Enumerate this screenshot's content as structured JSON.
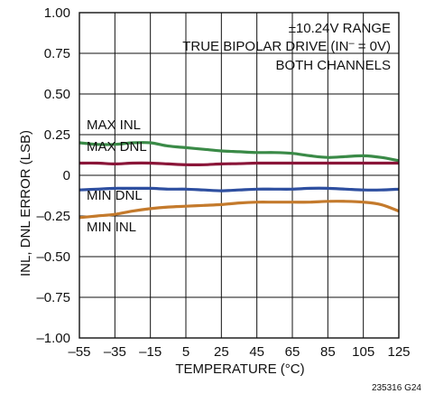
{
  "chart_data": {
    "type": "line",
    "title": "",
    "xlabel": "TEMPERATURE (°C)",
    "ylabel": "INL, DNL ERROR (LSB)",
    "xlim": [
      -55,
      125
    ],
    "ylim": [
      -1.0,
      1.0
    ],
    "x_ticks": [
      -55,
      -35,
      -15,
      5,
      25,
      45,
      65,
      85,
      105,
      125
    ],
    "x_tick_labels": [
      "–55",
      "–35",
      "–15",
      "5",
      "25",
      "45",
      "65",
      "85",
      "105",
      "125"
    ],
    "y_ticks": [
      1.0,
      0.75,
      0.5,
      0.25,
      0,
      -0.25,
      -0.5,
      -0.75,
      -1.0
    ],
    "y_tick_labels": [
      "1.00",
      "0.75",
      "0.50",
      "0.25",
      "0",
      "–0.25",
      "–0.50",
      "–0.75",
      "–1.00"
    ],
    "grid": true,
    "notes": [
      "±10.24V RANGE",
      "TRUE BIPOLAR DRIVE (IN",
      "–",
      " = 0V)",
      "BOTH CHANNELS"
    ],
    "figure_id": "235316 G24",
    "series": [
      {
        "name": "MAX INL",
        "color": "#3a8a47",
        "x": [
          -55,
          -45,
          -35,
          -25,
          -15,
          -5,
          5,
          15,
          25,
          35,
          45,
          55,
          65,
          75,
          85,
          95,
          105,
          115,
          125
        ],
        "y": [
          0.2,
          0.19,
          0.19,
          0.2,
          0.2,
          0.18,
          0.17,
          0.16,
          0.15,
          0.145,
          0.14,
          0.14,
          0.135,
          0.12,
          0.11,
          0.115,
          0.12,
          0.11,
          0.09
        ]
      },
      {
        "name": "MAX DNL",
        "color": "#8a1538",
        "x": [
          -55,
          -45,
          -35,
          -25,
          -15,
          -5,
          5,
          15,
          25,
          35,
          45,
          55,
          65,
          75,
          85,
          95,
          105,
          115,
          125
        ],
        "y": [
          0.075,
          0.075,
          0.07,
          0.075,
          0.075,
          0.07,
          0.065,
          0.065,
          0.07,
          0.072,
          0.075,
          0.075,
          0.075,
          0.075,
          0.075,
          0.075,
          0.075,
          0.075,
          0.075
        ]
      },
      {
        "name": "MIN DNL",
        "color": "#2e4fa0",
        "x": [
          -55,
          -45,
          -35,
          -25,
          -15,
          -5,
          5,
          15,
          25,
          35,
          45,
          55,
          65,
          75,
          85,
          95,
          105,
          115,
          125
        ],
        "y": [
          -0.09,
          -0.085,
          -0.08,
          -0.08,
          -0.08,
          -0.085,
          -0.085,
          -0.09,
          -0.095,
          -0.09,
          -0.085,
          -0.085,
          -0.085,
          -0.08,
          -0.08,
          -0.085,
          -0.09,
          -0.09,
          -0.085
        ]
      },
      {
        "name": "MIN INL",
        "color": "#c47a2c",
        "x": [
          -55,
          -45,
          -35,
          -25,
          -15,
          -5,
          5,
          15,
          25,
          35,
          45,
          55,
          65,
          75,
          85,
          95,
          105,
          115,
          125
        ],
        "y": [
          -0.26,
          -0.25,
          -0.24,
          -0.22,
          -0.205,
          -0.195,
          -0.19,
          -0.185,
          -0.18,
          -0.17,
          -0.165,
          -0.165,
          -0.165,
          -0.165,
          -0.16,
          -0.16,
          -0.165,
          -0.18,
          -0.22
        ]
      }
    ]
  }
}
